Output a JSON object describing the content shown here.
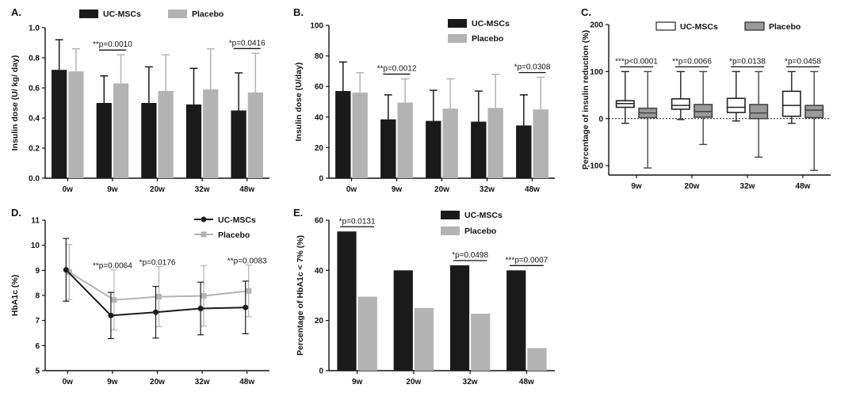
{
  "colors": {
    "uc": "#1a1a1a",
    "placebo": "#b3b3b3",
    "axis": "#111111"
  },
  "legend": {
    "uc": "UC-MSCs",
    "placebo": "Placebo"
  },
  "chart_data": [
    {
      "panel": "A.",
      "type": "bar",
      "ylabel": "Insulin dose (U/ kg/ day)",
      "ylim": [
        0,
        1.0
      ],
      "yticks": [
        "0.0",
        "0.2",
        "0.4",
        "0.6",
        "0.8",
        "1.0"
      ],
      "categories": [
        "0w",
        "9w",
        "20w",
        "32w",
        "48w"
      ],
      "legend_position": "top",
      "series": [
        {
          "name": "UC-MSCs",
          "values": [
            0.72,
            0.5,
            0.5,
            0.49,
            0.45
          ],
          "sd": [
            0.2,
            0.18,
            0.24,
            0.24,
            0.25
          ]
        },
        {
          "name": "Placebo",
          "values": [
            0.71,
            0.63,
            0.58,
            0.59,
            0.57
          ],
          "sd": [
            0.15,
            0.19,
            0.24,
            0.27,
            0.26
          ]
        }
      ],
      "annotations": [
        {
          "text": "**p=0.0010",
          "category": "9w"
        },
        {
          "text": "*p=0.0416",
          "category": "48w"
        }
      ]
    },
    {
      "panel": "B.",
      "type": "bar",
      "ylabel": "Insulin dose (U/day)",
      "ylim": [
        0,
        100
      ],
      "yticks": [
        "0",
        "20",
        "40",
        "60",
        "80",
        "100"
      ],
      "categories": [
        "0w",
        "9w",
        "20w",
        "32w",
        "48w"
      ],
      "legend_position": "top-right",
      "series": [
        {
          "name": "UC-MSCs",
          "values": [
            57,
            38.5,
            37.5,
            37,
            34.5
          ],
          "sd": [
            19,
            16,
            20,
            20,
            20
          ]
        },
        {
          "name": "Placebo",
          "values": [
            56,
            49.5,
            45.5,
            46,
            45
          ],
          "sd": [
            13,
            15.5,
            19.5,
            22,
            21
          ]
        }
      ],
      "annotations": [
        {
          "text": "**p=0.0012",
          "category": "9w"
        },
        {
          "text": "*p=0.0308",
          "category": "48w"
        }
      ]
    },
    {
      "panel": "C.",
      "type": "box",
      "ylabel": "Percentage of insulin reduction (%)",
      "ylim": [
        -120,
        200
      ],
      "yticks": [
        "-100",
        "0",
        "100",
        "200"
      ],
      "categories": [
        "9w",
        "20w",
        "32w",
        "48w"
      ],
      "legend_position": "top",
      "series": [
        {
          "name": "UC-MSCs",
          "boxes": [
            {
              "min": -10,
              "q1": 24,
              "median": 32,
              "q3": 38,
              "max": 100
            },
            {
              "min": -2,
              "q1": 20,
              "median": 28,
              "q3": 42,
              "max": 100
            },
            {
              "min": -5,
              "q1": 13,
              "median": 24,
              "q3": 43,
              "max": 100
            },
            {
              "min": -10,
              "q1": 5,
              "median": 28,
              "q3": 58,
              "max": 100
            }
          ]
        },
        {
          "name": "Placebo",
          "boxes": [
            {
              "min": -105,
              "q1": 2,
              "median": 12,
              "q3": 22,
              "max": 100
            },
            {
              "min": -55,
              "q1": 3,
              "median": 15,
              "q3": 30,
              "max": 100
            },
            {
              "min": -82,
              "q1": 0,
              "median": 12,
              "q3": 30,
              "max": 100
            },
            {
              "min": -110,
              "q1": 2,
              "median": 18,
              "q3": 28,
              "max": 100
            }
          ]
        }
      ],
      "annotations": [
        {
          "text": "***p<0.0001",
          "category": "9w"
        },
        {
          "text": "**p=0.0066",
          "category": "20w"
        },
        {
          "text": "*p=0.0138",
          "category": "32w"
        },
        {
          "text": "*p=0.0458",
          "category": "48w"
        }
      ]
    },
    {
      "panel": "D.",
      "type": "line",
      "ylabel": "HbA1c (%)",
      "ylim": [
        5,
        11
      ],
      "yticks": [
        "5",
        "6",
        "7",
        "8",
        "9",
        "10",
        "11"
      ],
      "categories": [
        "0w",
        "9w",
        "20w",
        "32w",
        "48w"
      ],
      "legend_position": "top-right",
      "series": [
        {
          "name": "UC-MSCs",
          "values": [
            9.02,
            7.2,
            7.33,
            7.48,
            7.52
          ],
          "sd": [
            1.25,
            0.92,
            1.03,
            1.05,
            1.05
          ]
        },
        {
          "name": "Placebo",
          "values": [
            8.93,
            7.82,
            7.95,
            7.98,
            8.18
          ],
          "sd": [
            1.1,
            1.2,
            1.2,
            1.2,
            1.03
          ]
        }
      ],
      "annotations": [
        {
          "text": "**p=0.0064",
          "category": "9w"
        },
        {
          "text": "*p=0.0176",
          "category": "20w"
        },
        {
          "text": "**p=0.0083",
          "category": "48w"
        }
      ]
    },
    {
      "panel": "E.",
      "type": "bar",
      "ylabel": "Percentage of HbA1c < 7% (%)",
      "ylim": [
        0,
        60
      ],
      "yticks": [
        "0",
        "20",
        "40",
        "60"
      ],
      "categories": [
        "9w",
        "20w",
        "32w",
        "48w"
      ],
      "legend_position": "top-right",
      "series": [
        {
          "name": "UC-MSCs",
          "values": [
            55.5,
            40,
            42,
            40
          ]
        },
        {
          "name": "Placebo",
          "values": [
            29.5,
            25,
            22.7,
            9
          ]
        }
      ],
      "annotations": [
        {
          "text": "*p=0.0131",
          "category": "9w"
        },
        {
          "text": "*p=0.0498",
          "category": "32w"
        },
        {
          "text": "***p=0.0007",
          "category": "48w"
        }
      ]
    }
  ]
}
